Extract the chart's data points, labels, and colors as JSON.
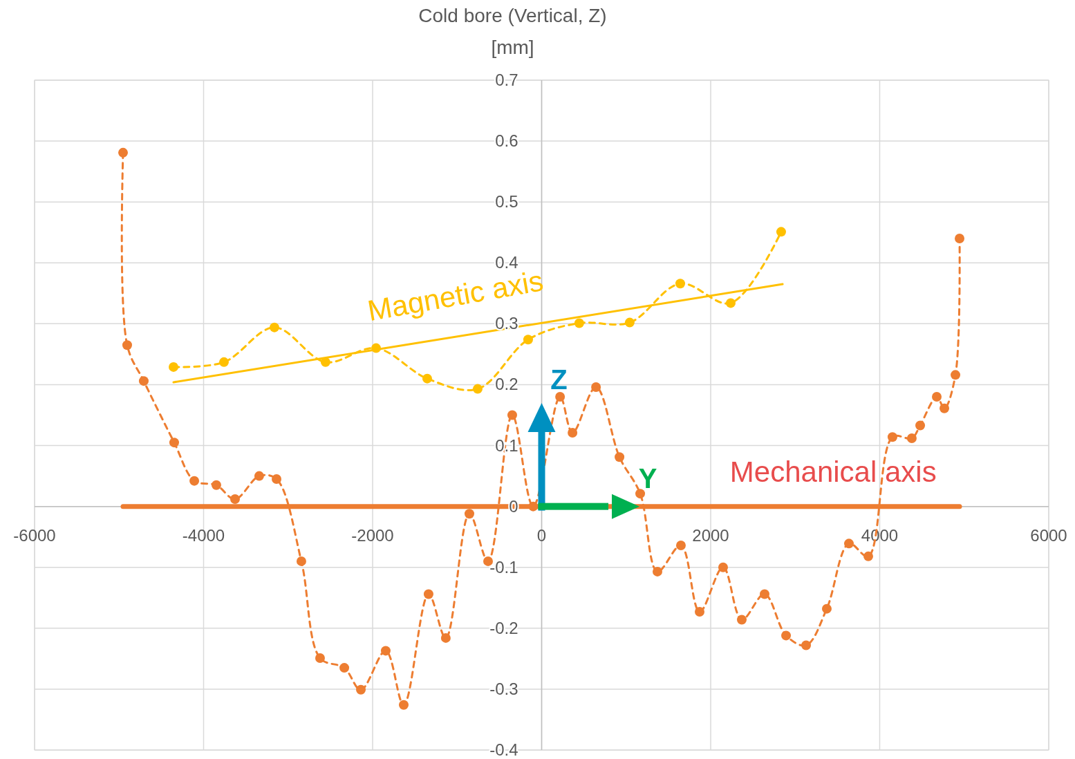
{
  "chart_data": {
    "type": "line",
    "title": "Cold bore (Vertical, Z)",
    "subtitle": "[mm]",
    "xlim": [
      -6000,
      6000
    ],
    "xticks": [
      -6000,
      -4000,
      -2000,
      0,
      2000,
      4000,
      6000
    ],
    "ylim": [
      -0.4,
      0.7
    ],
    "yticks": [
      -0.4,
      -0.3,
      -0.2,
      -0.1,
      0,
      0.1,
      0.2,
      0.3,
      0.4,
      0.5,
      0.6,
      0.7
    ],
    "grid": true,
    "series": [
      {
        "color": "#ed7d31",
        "marker": "circle",
        "line_style": "dashed",
        "x": [
          -4953,
          -4904,
          -4708,
          -4348,
          -4110,
          -3849,
          -3628,
          -3342,
          -3137,
          -2843,
          -2622,
          -2335,
          -2139,
          -1845,
          -1632,
          -1338,
          -1134,
          -855,
          -634,
          -348,
          -100,
          218,
          365,
          643,
          921,
          1166,
          1370,
          1648,
          1869,
          2147,
          2368,
          2638,
          2892,
          3129,
          3374,
          3636,
          3865,
          4151,
          4380,
          4479,
          4675,
          4765,
          4896,
          4945
        ],
        "values": [
          0.581,
          0.265,
          0.206,
          0.105,
          0.042,
          0.035,
          0.012,
          0.05,
          0.045,
          -0.09,
          -0.249,
          -0.265,
          -0.301,
          -0.237,
          -0.326,
          -0.144,
          -0.216,
          -0.012,
          -0.09,
          0.15,
          0.0,
          0.18,
          0.121,
          0.196,
          0.081,
          0.021,
          -0.107,
          -0.064,
          -0.173,
          -0.1,
          -0.186,
          -0.144,
          -0.212,
          -0.228,
          -0.168,
          -0.061,
          -0.082,
          0.114,
          0.112,
          0.133,
          0.18,
          0.161,
          0.216,
          0.44
        ]
      },
      {
        "color": "#ffc000",
        "marker": "circle",
        "line_style": "dashed",
        "x": [
          -4356,
          -3759,
          -3162,
          -2557,
          -1959,
          -1354,
          -757,
          -160,
          445,
          1042,
          1640,
          2237,
          2834
        ],
        "values": [
          0.229,
          0.237,
          0.294,
          0.237,
          0.26,
          0.21,
          0.193,
          0.274,
          0.301,
          0.302,
          0.366,
          0.334,
          0.451
        ]
      },
      {
        "color": "#ffc000",
        "marker": "none",
        "line_style": "solid",
        "x": [
          -4356,
          2851
        ],
        "values": [
          0.204,
          0.365
        ]
      },
      {
        "color": "#ed7d31",
        "marker": "none",
        "line_style": "solid",
        "x": [
          -4953,
          4945
        ],
        "values": [
          0,
          0
        ]
      }
    ],
    "annotations": [
      "Magnetic axis",
      "Mechanical axis",
      "Z",
      "Y"
    ]
  }
}
